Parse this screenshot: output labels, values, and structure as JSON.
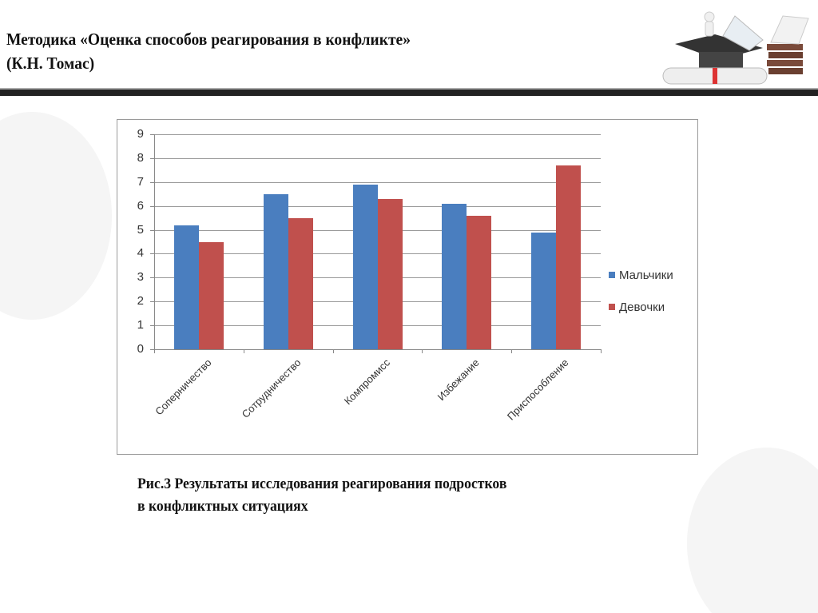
{
  "slide": {
    "title_line1": "Методика «Оценка способов реагирования в конфликте»",
    "title_line2": "(К.Н. Томас)",
    "caption_line1": "Рис.3 Результаты исследования реагирования подростков",
    "caption_line2": "в конфликтных ситуациях",
    "decoration": "graduation-cap-books-diploma-illustration"
  },
  "colors": {
    "boys": "#4a7ebf",
    "girls": "#c0504d",
    "divider": "#222222",
    "grid": "#9a9a9a"
  },
  "chart_data": {
    "type": "bar",
    "title": "",
    "xlabel": "",
    "ylabel": "",
    "ylim": [
      0,
      9
    ],
    "yticks": [
      "0",
      "1",
      "2",
      "3",
      "4",
      "5",
      "6",
      "7",
      "8",
      "9"
    ],
    "grid": true,
    "legend_position": "right",
    "categories": [
      "Соперничество",
      "Сотрудничество",
      "Компромисс",
      "Избежание",
      "Приспособление"
    ],
    "series": [
      {
        "name": "Мальчики",
        "color": "#4a7ebf",
        "values": [
          5.2,
          6.5,
          6.9,
          6.1,
          4.9
        ]
      },
      {
        "name": "Девочки",
        "color": "#c0504d",
        "values": [
          4.5,
          5.5,
          6.3,
          5.6,
          7.7
        ]
      }
    ]
  }
}
